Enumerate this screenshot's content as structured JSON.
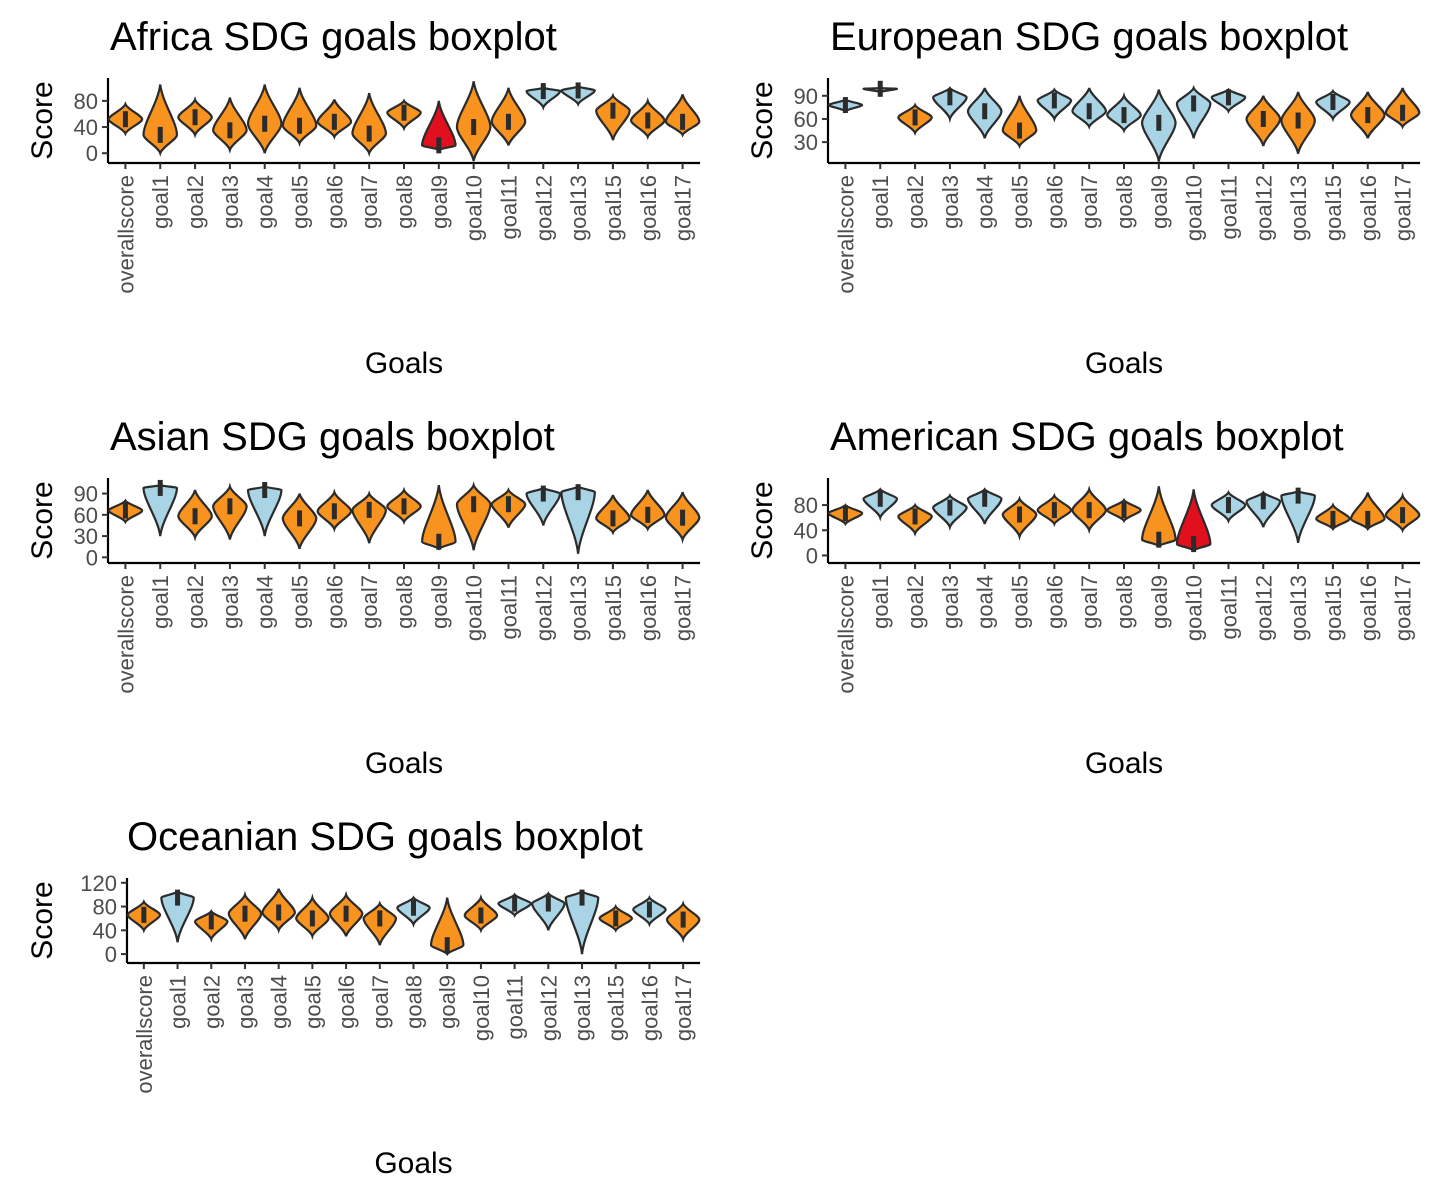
{
  "colors": {
    "orange": "#f7931e",
    "lightblue": "#a8d4e6",
    "red": "#e0101e",
    "outline": "#2b2b2b"
  },
  "chart_data": [
    {
      "type": "violin",
      "title": "Africa SDG goals boxplot",
      "xlabel": "Goals",
      "ylabel": "Score",
      "ylim": [
        -15,
        115
      ],
      "yticks": [
        0,
        40,
        80
      ],
      "categories": [
        "overallscore",
        "goal1",
        "goal2",
        "goal3",
        "goal4",
        "goal5",
        "goal6",
        "goal7",
        "goal8",
        "goal9",
        "goal10",
        "goal11",
        "goal12",
        "goal13",
        "goal15",
        "goal16",
        "goal17"
      ],
      "medians": [
        52,
        28,
        55,
        35,
        45,
        42,
        48,
        30,
        62,
        12,
        40,
        48,
        95,
        96,
        65,
        50,
        48
      ],
      "mins": [
        30,
        0,
        28,
        5,
        0,
        15,
        25,
        0,
        38,
        5,
        -12,
        12,
        70,
        75,
        20,
        25,
        28
      ],
      "maxs": [
        75,
        105,
        82,
        85,
        105,
        100,
        82,
        92,
        80,
        80,
        110,
        100,
        100,
        102,
        88,
        80,
        90
      ],
      "fill": [
        "orange",
        "orange",
        "orange",
        "orange",
        "orange",
        "orange",
        "orange",
        "orange",
        "orange",
        "red",
        "orange",
        "orange",
        "lightblue",
        "lightblue",
        "orange",
        "orange",
        "orange"
      ]
    },
    {
      "type": "violin",
      "title": "European SDG goals boxplot",
      "xlabel": "Goals",
      "ylabel": "Score",
      "ylim": [
        3,
        113
      ],
      "yticks": [
        30,
        60,
        90
      ],
      "categories": [
        "overallscore",
        "goal1",
        "goal2",
        "goal3",
        "goal4",
        "goal5",
        "goal6",
        "goal7",
        "goal8",
        "goal9",
        "goal10",
        "goal11",
        "goal12",
        "goal13",
        "goal15",
        "goal16",
        "goal17"
      ],
      "medians": [
        78,
        99,
        62,
        88,
        70,
        45,
        84,
        70,
        65,
        55,
        80,
        88,
        60,
        58,
        82,
        65,
        68
      ],
      "mins": [
        70,
        95,
        42,
        60,
        35,
        25,
        60,
        50,
        45,
        5,
        35,
        70,
        25,
        15,
        60,
        35,
        50
      ],
      "maxs": [
        85,
        100,
        78,
        100,
        100,
        90,
        98,
        100,
        90,
        98,
        100,
        98,
        90,
        95,
        96,
        95,
        100
      ],
      "fill": [
        "lightblue",
        "lightblue",
        "orange",
        "lightblue",
        "lightblue",
        "orange",
        "lightblue",
        "lightblue",
        "lightblue",
        "lightblue",
        "lightblue",
        "lightblue",
        "orange",
        "orange",
        "lightblue",
        "orange",
        "orange"
      ]
    },
    {
      "type": "violin",
      "title": "Asian SDG goals boxplot",
      "xlabel": "Goals",
      "ylabel": "Score",
      "ylim": [
        -8,
        112
      ],
      "yticks": [
        0,
        30,
        60,
        90
      ],
      "categories": [
        "overallscore",
        "goal1",
        "goal2",
        "goal3",
        "goal4",
        "goal5",
        "goal6",
        "goal7",
        "goal8",
        "goal9",
        "goal10",
        "goal11",
        "goal12",
        "goal13",
        "goal15",
        "goal16",
        "goal17"
      ],
      "medians": [
        66,
        98,
        58,
        72,
        95,
        55,
        65,
        67,
        72,
        22,
        75,
        75,
        90,
        92,
        55,
        60,
        56
      ],
      "mins": [
        50,
        30,
        28,
        25,
        30,
        12,
        40,
        20,
        50,
        12,
        10,
        42,
        45,
        5,
        35,
        40,
        25
      ],
      "maxs": [
        80,
        102,
        95,
        100,
        100,
        90,
        92,
        90,
        95,
        102,
        102,
        95,
        98,
        100,
        88,
        95,
        92
      ],
      "fill": [
        "orange",
        "lightblue",
        "orange",
        "orange",
        "lightblue",
        "orange",
        "orange",
        "orange",
        "orange",
        "orange",
        "orange",
        "orange",
        "lightblue",
        "lightblue",
        "orange",
        "orange",
        "orange"
      ]
    },
    {
      "type": "violin",
      "title": "American SDG goals boxplot",
      "xlabel": "Goals",
      "ylabel": "Score",
      "ylim": [
        -12,
        123
      ],
      "yticks": [
        0,
        40,
        80
      ],
      "categories": [
        "overallscore",
        "goal1",
        "goal2",
        "goal3",
        "goal4",
        "goal5",
        "goal6",
        "goal7",
        "goal8",
        "goal9",
        "goal10",
        "goal11",
        "goal12",
        "goal13",
        "goal15",
        "goal16",
        "goal17"
      ],
      "medians": [
        67,
        90,
        62,
        76,
        90,
        65,
        72,
        72,
        72,
        25,
        18,
        80,
        86,
        95,
        58,
        58,
        64
      ],
      "mins": [
        50,
        60,
        35,
        45,
        50,
        30,
        50,
        40,
        55,
        15,
        8,
        55,
        45,
        20,
        42,
        42,
        40
      ],
      "maxs": [
        80,
        105,
        80,
        95,
        105,
        90,
        95,
        105,
        88,
        110,
        105,
        100,
        100,
        102,
        80,
        100,
        95
      ],
      "fill": [
        "orange",
        "lightblue",
        "orange",
        "lightblue",
        "lightblue",
        "orange",
        "orange",
        "orange",
        "orange",
        "orange",
        "red",
        "lightblue",
        "lightblue",
        "lightblue",
        "orange",
        "orange",
        "orange"
      ]
    },
    {
      "type": "violin",
      "title": "Oceanian SDG goals boxplot",
      "xlabel": "Goals",
      "ylabel": "Score",
      "ylim": [
        -15,
        128
      ],
      "yticks": [
        0,
        40,
        80,
        120
      ],
      "categories": [
        "overallscore",
        "goal1",
        "goal2",
        "goal3",
        "goal4",
        "goal5",
        "goal6",
        "goal7",
        "goal8",
        "goal9",
        "goal10",
        "goal11",
        "goal12",
        "goal13",
        "goal15",
        "goal16",
        "goal17"
      ],
      "medians": [
        66,
        95,
        55,
        68,
        70,
        60,
        68,
        60,
        78,
        15,
        65,
        85,
        85,
        95,
        60,
        75,
        58
      ],
      "mins": [
        40,
        20,
        25,
        25,
        40,
        30,
        30,
        15,
        50,
        0,
        40,
        65,
        40,
        0,
        40,
        50,
        25
      ],
      "maxs": [
        88,
        105,
        72,
        100,
        110,
        95,
        100,
        85,
        95,
        95,
        95,
        100,
        102,
        105,
        80,
        95,
        85
      ],
      "fill": [
        "orange",
        "lightblue",
        "orange",
        "orange",
        "orange",
        "orange",
        "orange",
        "orange",
        "lightblue",
        "orange",
        "orange",
        "lightblue",
        "lightblue",
        "lightblue",
        "orange",
        "lightblue",
        "orange"
      ]
    }
  ]
}
